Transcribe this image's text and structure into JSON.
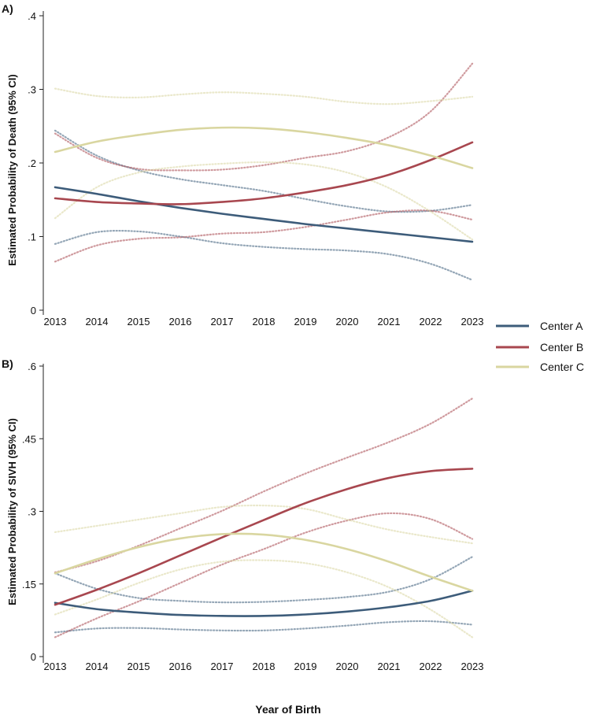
{
  "chart_data": [
    {
      "type": "line",
      "panel_label": "A)",
      "ylabel": "Estimated Probability of Death (95% CI)",
      "xlabel": "",
      "x": [
        2013,
        2014,
        2015,
        2016,
        2017,
        2018,
        2019,
        2020,
        2021,
        2022,
        2023
      ],
      "xticks": [
        "2013",
        "2014",
        "2015",
        "2016",
        "2017",
        "2018",
        "2019",
        "2020",
        "2021",
        "2022",
        "2023"
      ],
      "ylim": [
        0,
        0.4
      ],
      "yticks": [
        0,
        0.1,
        0.2,
        0.3,
        0.4
      ],
      "ytick_labels": [
        "0",
        ".1",
        ".2",
        ".3",
        ".4"
      ],
      "series": [
        {
          "name": "Center A",
          "color": "#3d5c7a",
          "values": [
            0.167,
            0.158,
            0.148,
            0.139,
            0.131,
            0.124,
            0.117,
            0.111,
            0.105,
            0.099,
            0.093
          ],
          "ci_low": [
            0.09,
            0.106,
            0.107,
            0.1,
            0.091,
            0.086,
            0.083,
            0.081,
            0.076,
            0.063,
            0.041
          ],
          "ci_high": [
            0.244,
            0.21,
            0.19,
            0.178,
            0.17,
            0.162,
            0.151,
            0.141,
            0.134,
            0.135,
            0.143
          ]
        },
        {
          "name": "Center B",
          "color": "#a8474f",
          "values": [
            0.152,
            0.147,
            0.145,
            0.144,
            0.147,
            0.152,
            0.16,
            0.17,
            0.184,
            0.204,
            0.228
          ],
          "ci_low": [
            0.066,
            0.088,
            0.097,
            0.099,
            0.104,
            0.106,
            0.113,
            0.123,
            0.133,
            0.135,
            0.123
          ],
          "ci_high": [
            0.24,
            0.207,
            0.192,
            0.19,
            0.191,
            0.197,
            0.207,
            0.216,
            0.235,
            0.27,
            0.335
          ]
        },
        {
          "name": "Center C",
          "color": "#d9d6a0",
          "values": [
            0.215,
            0.229,
            0.238,
            0.245,
            0.248,
            0.247,
            0.242,
            0.234,
            0.224,
            0.21,
            0.193
          ],
          "ci_low": [
            0.125,
            0.167,
            0.187,
            0.195,
            0.199,
            0.201,
            0.198,
            0.187,
            0.166,
            0.134,
            0.096
          ],
          "ci_high": [
            0.301,
            0.291,
            0.289,
            0.293,
            0.296,
            0.294,
            0.29,
            0.283,
            0.28,
            0.284,
            0.29
          ]
        }
      ]
    },
    {
      "type": "line",
      "panel_label": "B)",
      "ylabel": "Estimated Probability of SIVH (95% CI)",
      "xlabel": "Year of Birth",
      "x": [
        2013,
        2014,
        2015,
        2016,
        2017,
        2018,
        2019,
        2020,
        2021,
        2022,
        2023
      ],
      "xticks": [
        "2013",
        "2014",
        "2015",
        "2016",
        "2017",
        "2018",
        "2019",
        "2020",
        "2021",
        "2022",
        "2023"
      ],
      "ylim": [
        0,
        0.6
      ],
      "yticks": [
        0,
        0.15,
        0.3,
        0.45,
        0.6
      ],
      "ytick_labels": [
        "0",
        ".15",
        ".3",
        ".45",
        ".6"
      ],
      "series": [
        {
          "name": "Center A",
          "color": "#3d5c7a",
          "values": [
            0.111,
            0.098,
            0.091,
            0.086,
            0.084,
            0.084,
            0.087,
            0.093,
            0.102,
            0.115,
            0.136
          ],
          "ci_low": [
            0.05,
            0.058,
            0.059,
            0.056,
            0.054,
            0.054,
            0.058,
            0.064,
            0.071,
            0.073,
            0.066
          ],
          "ci_high": [
            0.172,
            0.14,
            0.121,
            0.115,
            0.112,
            0.113,
            0.117,
            0.123,
            0.134,
            0.16,
            0.206
          ]
        },
        {
          "name": "Center B",
          "color": "#a8474f",
          "values": [
            0.107,
            0.138,
            0.172,
            0.209,
            0.246,
            0.282,
            0.317,
            0.346,
            0.369,
            0.383,
            0.388
          ],
          "ci_low": [
            0.04,
            0.079,
            0.114,
            0.152,
            0.19,
            0.222,
            0.256,
            0.281,
            0.296,
            0.284,
            0.243
          ],
          "ci_high": [
            0.174,
            0.197,
            0.229,
            0.265,
            0.301,
            0.341,
            0.378,
            0.411,
            0.443,
            0.481,
            0.533
          ]
        },
        {
          "name": "Center C",
          "color": "#d9d6a0",
          "values": [
            0.172,
            0.201,
            0.226,
            0.244,
            0.253,
            0.252,
            0.241,
            0.222,
            0.196,
            0.165,
            0.136
          ],
          "ci_low": [
            0.087,
            0.118,
            0.152,
            0.18,
            0.196,
            0.199,
            0.193,
            0.174,
            0.143,
            0.097,
            0.04
          ],
          "ci_high": [
            0.257,
            0.27,
            0.283,
            0.296,
            0.309,
            0.312,
            0.305,
            0.283,
            0.262,
            0.247,
            0.234
          ]
        }
      ]
    }
  ],
  "legend": {
    "placement": "right",
    "entries": [
      {
        "label": "Center A",
        "color": "#3d5c7a"
      },
      {
        "label": "Center B",
        "color": "#a8474f"
      },
      {
        "label": "Center C",
        "color": "#d9d6a0"
      }
    ]
  }
}
